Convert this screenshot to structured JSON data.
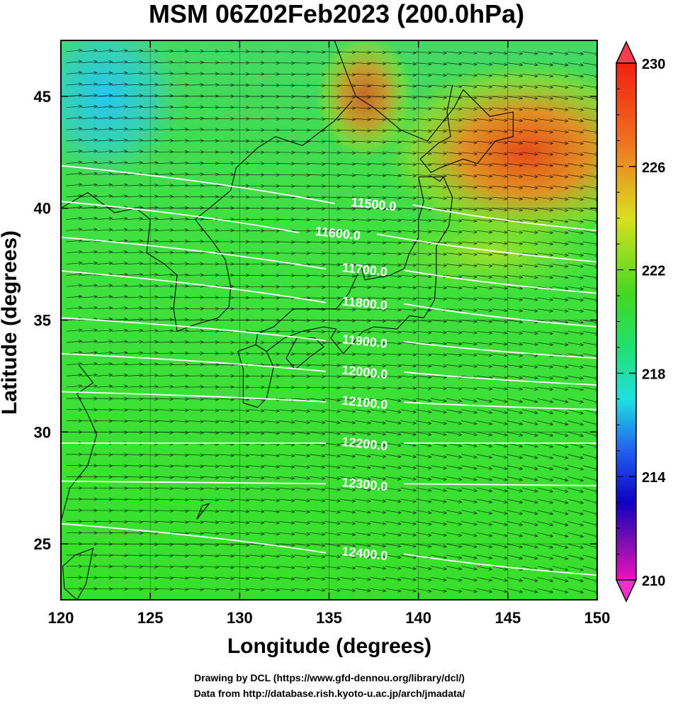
{
  "title": "MSM 06Z02Feb2023 (200.0hPa)",
  "xlabel": "Longitude (degrees)",
  "ylabel": "Latitude  (degrees)",
  "credits": {
    "line1": "Drawing by DCL (https://www.gfd-dennou.org/library/dcl/)",
    "line2": "Data from http://database.rish.kyoto-u.ac.jp/arch/jmadata/"
  },
  "chart_data": {
    "type": "heatmap",
    "xlim": [
      120,
      150
    ],
    "ylim": [
      22.5,
      47.5
    ],
    "x_ticks": [
      "120",
      "125",
      "130",
      "135",
      "140",
      "145",
      "150"
    ],
    "y_ticks": [
      "25",
      "30",
      "35",
      "40",
      "45"
    ],
    "grid": true,
    "colorbar": {
      "range": [
        210,
        230
      ],
      "tick_labels": [
        "230",
        "226",
        "222",
        "218",
        "214",
        "210"
      ],
      "tick_values": [
        230,
        226,
        222,
        218,
        214,
        210
      ]
    },
    "contours": [
      {
        "label": "11500.0",
        "lat_left": 41.9,
        "lat_right": 39.0
      },
      {
        "label": "11600.0",
        "lat_left": 40.3,
        "lat_right": 37.6
      },
      {
        "label": "11700.0",
        "lat_left": 38.7,
        "lat_right": 36.2
      },
      {
        "label": "11800.0",
        "lat_left": 37.2,
        "lat_right": 34.7
      },
      {
        "label": "11900.0",
        "lat_left": 35.1,
        "lat_right": 33.3
      },
      {
        "label": "12000.0",
        "lat_left": 33.5,
        "lat_right": 32.1
      },
      {
        "label": "12100.0",
        "lat_left": 31.8,
        "lat_right": 31.0
      },
      {
        "label": "12200.0",
        "lat_left": 29.5,
        "lat_right": 29.5
      },
      {
        "label": "12300.0",
        "lat_left": 27.8,
        "lat_right": 27.6
      },
      {
        "label": "12400.0",
        "lat_left": 25.9,
        "lat_right": 23.6
      }
    ]
  }
}
